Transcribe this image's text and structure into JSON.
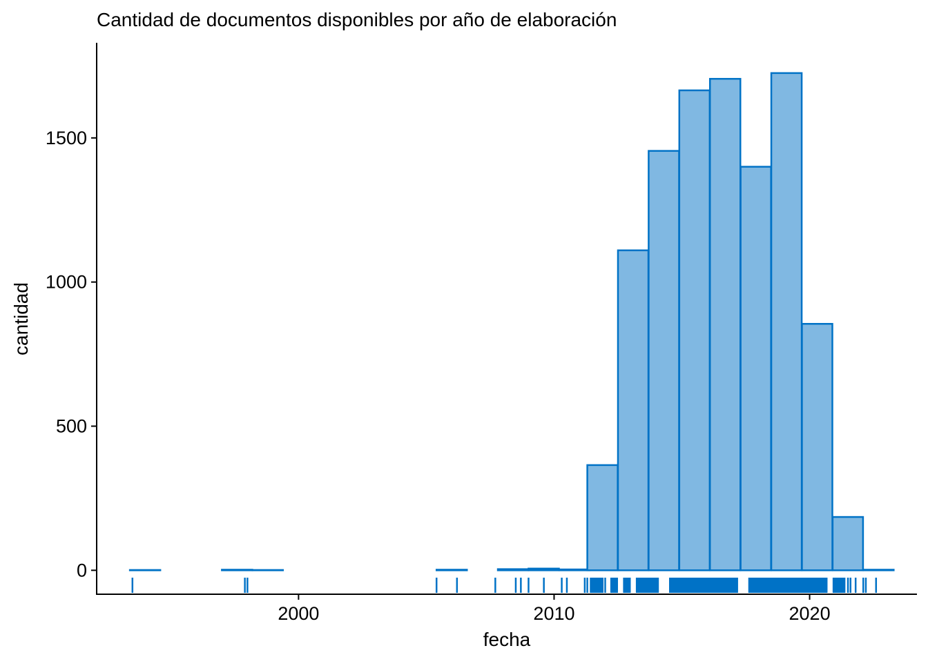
{
  "chart_data": {
    "type": "bar",
    "title": "Cantidad de documentos disponibles por año de elaboración",
    "xlabel": "fecha",
    "ylabel": "cantidad",
    "x_ticks": [
      2000,
      2010,
      2020
    ],
    "y_ticks": [
      0,
      500,
      1000,
      1500
    ],
    "xlim": [
      1992.1,
      2024.2
    ],
    "ylim": [
      -83,
      1830
    ],
    "bin_width": 1.19,
    "bins": [
      {
        "start": 1993.4,
        "value": 1
      },
      {
        "start": 1994.6,
        "value": 0
      },
      {
        "start": 1995.8,
        "value": 0
      },
      {
        "start": 1997.0,
        "value": 2
      },
      {
        "start": 1998.2,
        "value": 1
      },
      {
        "start": 1999.4,
        "value": 0
      },
      {
        "start": 2000.6,
        "value": 0
      },
      {
        "start": 2001.8,
        "value": 0
      },
      {
        "start": 2003.0,
        "value": 0
      },
      {
        "start": 2004.2,
        "value": 0
      },
      {
        "start": 2005.4,
        "value": 2
      },
      {
        "start": 2006.6,
        "value": 0
      },
      {
        "start": 2007.8,
        "value": 4
      },
      {
        "start": 2009.0,
        "value": 6
      },
      {
        "start": 2010.2,
        "value": 3
      },
      {
        "start": 2011.3,
        "value": 365
      },
      {
        "start": 2012.5,
        "value": 1110
      },
      {
        "start": 2013.7,
        "value": 1455
      },
      {
        "start": 2014.9,
        "value": 1665
      },
      {
        "start": 2016.1,
        "value": 1705
      },
      {
        "start": 2017.3,
        "value": 1400
      },
      {
        "start": 2018.5,
        "value": 1725
      },
      {
        "start": 2019.7,
        "value": 855
      },
      {
        "start": 2020.9,
        "value": 185
      },
      {
        "start": 2022.1,
        "value": 2
      }
    ],
    "rug_single": [
      1993.5,
      1997.9,
      1998.0,
      2005.4,
      2006.2,
      2007.7,
      2008.5,
      2008.7,
      2009.0,
      2009.6,
      2010.3,
      2010.5,
      2011.2,
      2011.3,
      2011.9,
      2012.0,
      2021.5,
      2021.6,
      2021.8,
      2022.1,
      2022.2,
      2022.6
    ],
    "rug_dense_ranges": [
      [
        2011.4,
        2011.9
      ],
      [
        2012.2,
        2012.5
      ],
      [
        2012.7,
        2013.0
      ],
      [
        2013.2,
        2014.1
      ],
      [
        2014.5,
        2017.2
      ],
      [
        2017.6,
        2020.7
      ],
      [
        2020.9,
        2021.4
      ]
    ],
    "colors": {
      "bar_fill": "#80b8e2",
      "bar_stroke": "#0072c6",
      "rug": "#0072c6",
      "axis": "#000000"
    }
  }
}
